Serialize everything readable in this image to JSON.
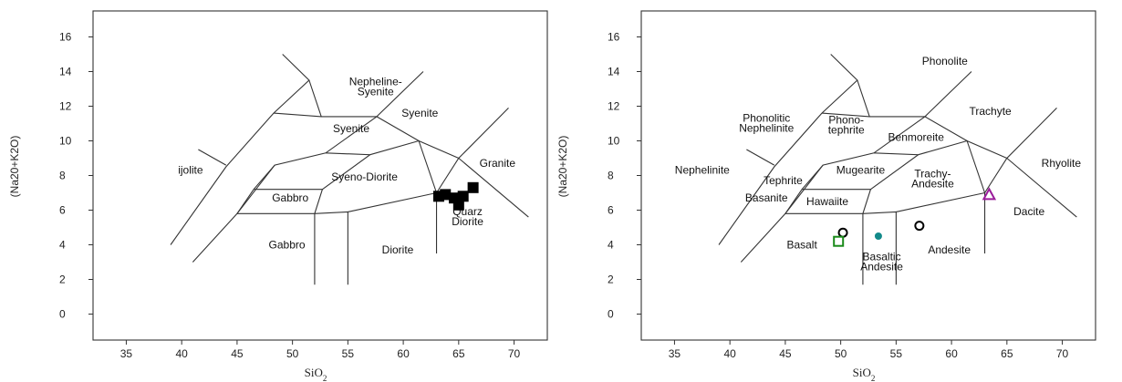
{
  "chart_data": [
    {
      "type": "scatter",
      "xlabel": "SiO",
      "xlabel_sub": "2",
      "ylabel": "(Na20+K2O)",
      "xlim": [
        32,
        73
      ],
      "ylim": [
        -1.5,
        17.5
      ],
      "xticks": [
        "35",
        "40",
        "45",
        "50",
        "55",
        "60",
        "65",
        "70"
      ],
      "yticks": [
        "0",
        "2",
        "4",
        "6",
        "8",
        "10",
        "12",
        "14",
        "16"
      ],
      "field_labels": [
        {
          "lines": [
            "Nepheline-",
            "Syenite"
          ],
          "x": 57.5,
          "y": 13.2
        },
        {
          "lines": [
            "Syenite"
          ],
          "x": 61.5,
          "y": 11.4
        },
        {
          "lines": [
            "Syenite"
          ],
          "x": 55.3,
          "y": 10.5
        },
        {
          "lines": [
            "Syeno-Diorite"
          ],
          "x": 56.5,
          "y": 7.7
        },
        {
          "lines": [
            "Granite"
          ],
          "x": 68.5,
          "y": 8.5
        },
        {
          "lines": [
            "ijolite"
          ],
          "x": 40.8,
          "y": 8.1
        },
        {
          "lines": [
            "Gabbro"
          ],
          "x": 49.8,
          "y": 6.5
        },
        {
          "lines": [
            "Gabbro"
          ],
          "x": 49.5,
          "y": 3.8
        },
        {
          "lines": [
            "Diorite"
          ],
          "x": 59.5,
          "y": 3.5
        },
        {
          "lines": [
            "Quarz",
            "Diorite"
          ],
          "x": 65.8,
          "y": 5.7
        }
      ],
      "series": [
        {
          "marker": "filled-square",
          "color": "#000000",
          "points": [
            [
              63.2,
              6.8
            ],
            [
              63.8,
              6.9
            ],
            [
              64.6,
              6.7
            ],
            [
              65.0,
              6.3
            ],
            [
              65.4,
              6.8
            ],
            [
              66.3,
              7.3
            ]
          ]
        }
      ]
    },
    {
      "type": "scatter",
      "xlabel": "SiO",
      "xlabel_sub": "2",
      "ylabel": "(Na20+K2O)",
      "xlim": [
        32,
        73
      ],
      "ylim": [
        -1.5,
        17.5
      ],
      "xticks": [
        "35",
        "40",
        "45",
        "50",
        "55",
        "60",
        "65",
        "70"
      ],
      "yticks": [
        "0",
        "2",
        "4",
        "6",
        "8",
        "10",
        "12",
        "14",
        "16"
      ],
      "field_labels": [
        {
          "lines": [
            "Phonolite"
          ],
          "x": 59.4,
          "y": 14.4
        },
        {
          "lines": [
            "Phonolitic",
            "Nephelinite"
          ],
          "x": 43.3,
          "y": 11.1
        },
        {
          "lines": [
            "Phono-",
            "tephrite"
          ],
          "x": 50.5,
          "y": 11.0
        },
        {
          "lines": [
            "Trachyte"
          ],
          "x": 63.5,
          "y": 11.5
        },
        {
          "lines": [
            "Benmoreite"
          ],
          "x": 56.8,
          "y": 10.0
        },
        {
          "lines": [
            "Rhyolite"
          ],
          "x": 69.9,
          "y": 8.5
        },
        {
          "lines": [
            "Nephelinite"
          ],
          "x": 37.5,
          "y": 8.1
        },
        {
          "lines": [
            "Mugearite"
          ],
          "x": 51.8,
          "y": 8.1
        },
        {
          "lines": [
            "Trachy-",
            "Andesite"
          ],
          "x": 58.3,
          "y": 7.9
        },
        {
          "lines": [
            "Tephrite"
          ],
          "x": 44.8,
          "y": 7.5
        },
        {
          "lines": [
            "Basanite"
          ],
          "x": 43.3,
          "y": 6.5
        },
        {
          "lines": [
            "Hawaiite"
          ],
          "x": 48.8,
          "y": 6.3
        },
        {
          "lines": [
            "Dacite"
          ],
          "x": 67.0,
          "y": 5.7
        },
        {
          "lines": [
            "Basalt"
          ],
          "x": 46.5,
          "y": 3.8
        },
        {
          "lines": [
            "Basaltic",
            "Andesite"
          ],
          "x": 53.7,
          "y": 3.1
        },
        {
          "lines": [
            "Andesite"
          ],
          "x": 59.8,
          "y": 3.5
        }
      ],
      "series": [
        {
          "marker": "open-circle",
          "color": "#000000",
          "points": [
            [
              50.2,
              4.7
            ],
            [
              57.1,
              5.1
            ]
          ]
        },
        {
          "marker": "open-square",
          "color": "#1a8a1a",
          "points": [
            [
              49.8,
              4.2
            ]
          ]
        },
        {
          "marker": "filled-circle",
          "color": "#138a8a",
          "points": [
            [
              53.4,
              4.5
            ]
          ]
        },
        {
          "marker": "open-triangle",
          "color": "#9b1c9b",
          "points": [
            [
              63.4,
              6.9
            ]
          ]
        }
      ]
    }
  ]
}
